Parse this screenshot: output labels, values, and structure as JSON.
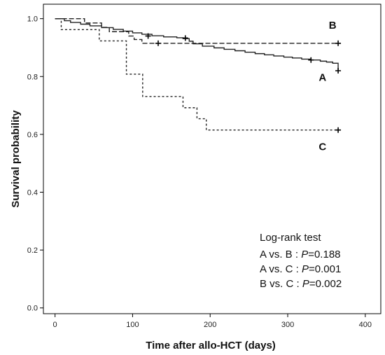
{
  "chart_data": {
    "type": "line",
    "step": true,
    "xlabel": "Time after allo-HCT (days)",
    "ylabel": "Survival probability",
    "xlim": [
      -15,
      420
    ],
    "ylim": [
      -0.02,
      1.05
    ],
    "xticks": [
      0,
      100,
      200,
      300,
      400
    ],
    "yticks": [
      0.0,
      0.2,
      0.4,
      0.6,
      0.8,
      1.0
    ],
    "xtick_labels": [
      "0",
      "100",
      "200",
      "300",
      "400"
    ],
    "ytick_labels": [
      "0.0",
      "0.2",
      "0.4",
      "0.6",
      "0.8",
      "1.0"
    ],
    "grid": false,
    "series": [
      {
        "name": "A",
        "line_style": "solid",
        "color": "#222222",
        "x": [
          0,
          12,
          20,
          33,
          45,
          60,
          75,
          88,
          100,
          112,
          125,
          140,
          157,
          165,
          173,
          178,
          190,
          205,
          218,
          232,
          245,
          258,
          270,
          282,
          295,
          306,
          318,
          330,
          342,
          350,
          358,
          365
        ],
        "y": [
          1.0,
          0.993,
          0.987,
          0.981,
          0.975,
          0.969,
          0.963,
          0.957,
          0.951,
          0.946,
          0.941,
          0.937,
          0.934,
          0.931,
          0.922,
          0.913,
          0.905,
          0.899,
          0.894,
          0.889,
          0.884,
          0.879,
          0.875,
          0.871,
          0.867,
          0.864,
          0.86,
          0.857,
          0.853,
          0.85,
          0.846,
          0.82
        ],
        "censored": [
          [
            120,
            0.94
          ],
          [
            168,
            0.933
          ],
          [
            330,
            0.857
          ],
          [
            365,
            0.82
          ]
        ]
      },
      {
        "name": "B",
        "line_style": "dashed",
        "color": "#222222",
        "x": [
          0,
          38,
          60,
          70,
          95,
          102,
          112,
          365
        ],
        "y": [
          1.0,
          0.985,
          0.97,
          0.955,
          0.94,
          0.928,
          0.915,
          0.915
        ],
        "censored": [
          [
            133,
            0.915
          ],
          [
            365,
            0.915
          ]
        ]
      },
      {
        "name": "C",
        "line_style": "dotted",
        "color": "#222222",
        "x": [
          0,
          8,
          57,
          92,
          113,
          165,
          183,
          195,
          365
        ],
        "y": [
          1.0,
          0.962,
          0.923,
          0.808,
          0.731,
          0.692,
          0.654,
          0.615,
          0.615
        ],
        "censored": [
          [
            365,
            0.615
          ]
        ]
      }
    ],
    "curve_labels": [
      {
        "text": "B",
        "x": 353,
        "y": 0.965
      },
      {
        "text": "A",
        "x": 340,
        "y": 0.785
      },
      {
        "text": "C",
        "x": 340,
        "y": 0.545
      }
    ],
    "annotation": {
      "title": "Log-rank test",
      "lines": [
        {
          "prefix": "A vs. B : ",
          "p_label": "P",
          "value": "=0.188"
        },
        {
          "prefix": "A vs. C : ",
          "p_label": "P",
          "value": "=0.001"
        },
        {
          "prefix": "B vs. C : ",
          "p_label": "P",
          "value": "=0.002"
        }
      ]
    }
  }
}
